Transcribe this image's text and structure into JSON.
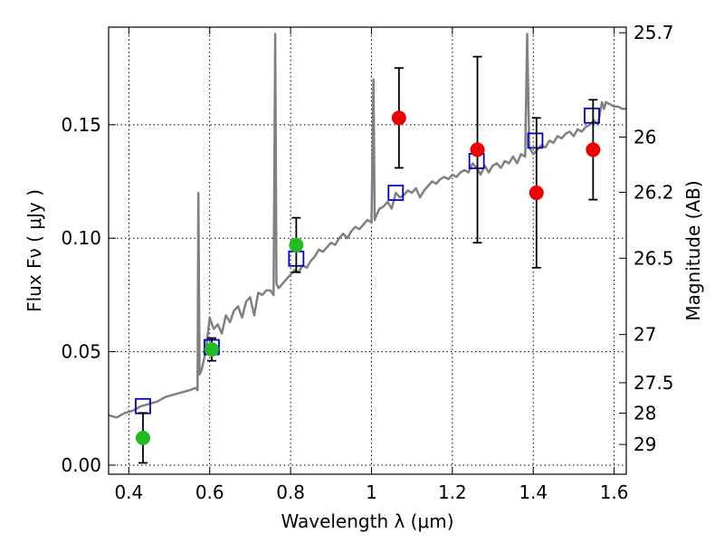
{
  "chart_data": {
    "type": "scatter",
    "xlabel": "Wavelength  λ (μm)",
    "ylabel": "Flux  Fν  ( μJy )",
    "ylabel_right": "Magnitude (AB)",
    "xlim": [
      0.35,
      1.63
    ],
    "ylim": [
      -0.004,
      0.193
    ],
    "grid": true,
    "x_ticks": [
      {
        "value": 0.4,
        "label": "0.4"
      },
      {
        "value": 0.6,
        "label": "0.6"
      },
      {
        "value": 0.8,
        "label": "0.8"
      },
      {
        "value": 1.0,
        "label": "1"
      },
      {
        "value": 1.2,
        "label": "1.2"
      },
      {
        "value": 1.4,
        "label": "1.4"
      },
      {
        "value": 1.6,
        "label": "1.6"
      }
    ],
    "y_ticks": [
      {
        "value": 0.0,
        "label": "0.00"
      },
      {
        "value": 0.05,
        "label": "0.05"
      },
      {
        "value": 0.1,
        "label": "0.10"
      },
      {
        "value": 0.15,
        "label": "0.15"
      }
    ],
    "y_ticks_right": [
      {
        "value": 25.7,
        "label": "25.7"
      },
      {
        "value": 26.0,
        "label": "26"
      },
      {
        "value": 26.2,
        "label": "26.2"
      },
      {
        "value": 26.5,
        "label": "26.5"
      },
      {
        "value": 27.0,
        "label": "27"
      },
      {
        "value": 27.5,
        "label": "27.5"
      },
      {
        "value": 28.0,
        "label": "28"
      },
      {
        "value": 29.0,
        "label": "29"
      }
    ],
    "series": [
      {
        "kind": "spectrum_line",
        "color": "#808080",
        "x": [
          0.35,
          0.37,
          0.39,
          0.41,
          0.43,
          0.45,
          0.47,
          0.49,
          0.51,
          0.53,
          0.55,
          0.565,
          0.57,
          0.572,
          0.575,
          0.58,
          0.59,
          0.6,
          0.61,
          0.62,
          0.63,
          0.64,
          0.65,
          0.66,
          0.67,
          0.68,
          0.69,
          0.7,
          0.71,
          0.72,
          0.73,
          0.74,
          0.75,
          0.758,
          0.762,
          0.765,
          0.77,
          0.78,
          0.79,
          0.8,
          0.81,
          0.82,
          0.83,
          0.84,
          0.85,
          0.86,
          0.87,
          0.88,
          0.89,
          0.9,
          0.91,
          0.92,
          0.93,
          0.94,
          0.95,
          0.96,
          0.97,
          0.98,
          0.99,
          1.0,
          1.005,
          1.008,
          1.012,
          1.02,
          1.03,
          1.04,
          1.05,
          1.06,
          1.07,
          1.08,
          1.09,
          1.1,
          1.11,
          1.12,
          1.13,
          1.14,
          1.15,
          1.16,
          1.17,
          1.18,
          1.19,
          1.2,
          1.21,
          1.22,
          1.23,
          1.24,
          1.25,
          1.26,
          1.27,
          1.28,
          1.29,
          1.3,
          1.31,
          1.32,
          1.33,
          1.34,
          1.35,
          1.36,
          1.37,
          1.38,
          1.385,
          1.39,
          1.4,
          1.41,
          1.42,
          1.43,
          1.44,
          1.45,
          1.46,
          1.47,
          1.48,
          1.49,
          1.5,
          1.51,
          1.52,
          1.53,
          1.54,
          1.55,
          1.56,
          1.57,
          1.575,
          1.58,
          1.59,
          1.6,
          1.61,
          1.62,
          1.63
        ],
        "y": [
          0.022,
          0.021,
          0.023,
          0.024,
          0.026,
          0.027,
          0.028,
          0.03,
          0.031,
          0.032,
          0.033,
          0.034,
          0.033,
          0.12,
          0.04,
          0.042,
          0.05,
          0.065,
          0.06,
          0.062,
          0.058,
          0.066,
          0.063,
          0.068,
          0.07,
          0.065,
          0.072,
          0.074,
          0.066,
          0.076,
          0.075,
          0.077,
          0.077,
          0.075,
          0.19,
          0.08,
          0.078,
          0.08,
          0.082,
          0.084,
          0.086,
          0.085,
          0.088,
          0.087,
          0.09,
          0.092,
          0.095,
          0.094,
          0.096,
          0.098,
          0.097,
          0.1,
          0.102,
          0.1,
          0.103,
          0.105,
          0.104,
          0.106,
          0.108,
          0.107,
          0.17,
          0.108,
          0.11,
          0.113,
          0.114,
          0.116,
          0.113,
          0.12,
          0.118,
          0.119,
          0.121,
          0.12,
          0.122,
          0.118,
          0.121,
          0.123,
          0.125,
          0.124,
          0.126,
          0.127,
          0.126,
          0.128,
          0.127,
          0.129,
          0.13,
          0.129,
          0.133,
          0.131,
          0.128,
          0.132,
          0.129,
          0.132,
          0.133,
          0.131,
          0.134,
          0.133,
          0.136,
          0.133,
          0.137,
          0.136,
          0.19,
          0.14,
          0.137,
          0.139,
          0.141,
          0.14,
          0.143,
          0.142,
          0.145,
          0.144,
          0.146,
          0.147,
          0.145,
          0.148,
          0.147,
          0.149,
          0.15,
          0.152,
          0.15,
          0.16,
          0.157,
          0.16,
          0.159,
          0.158,
          0.158,
          0.157,
          0.157
        ]
      },
      {
        "kind": "model_photometry",
        "marker": "open-square",
        "color": "#0000cc",
        "x": [
          0.435,
          0.605,
          0.814,
          1.06,
          1.26,
          1.405,
          1.545
        ],
        "y": [
          0.026,
          0.052,
          0.091,
          0.12,
          0.134,
          0.143,
          0.154
        ]
      },
      {
        "kind": "observed_photometry",
        "marker": "filled-circle",
        "color": "#22bb22",
        "x": [
          0.435,
          0.605,
          0.814
        ],
        "y": [
          0.012,
          0.051,
          0.097
        ],
        "yerr_low": [
          0.011,
          0.005,
          0.012
        ],
        "yerr_high": [
          0.011,
          0.005,
          0.012
        ]
      },
      {
        "kind": "observed_photometry",
        "marker": "filled-circle",
        "color": "#ee0000",
        "x": [
          1.068,
          1.262,
          1.408,
          1.548
        ],
        "y": [
          0.153,
          0.139,
          0.12,
          0.139
        ],
        "yerr_low": [
          0.022,
          0.041,
          0.033,
          0.022
        ],
        "yerr_high": [
          0.022,
          0.041,
          0.033,
          0.022
        ]
      }
    ]
  }
}
